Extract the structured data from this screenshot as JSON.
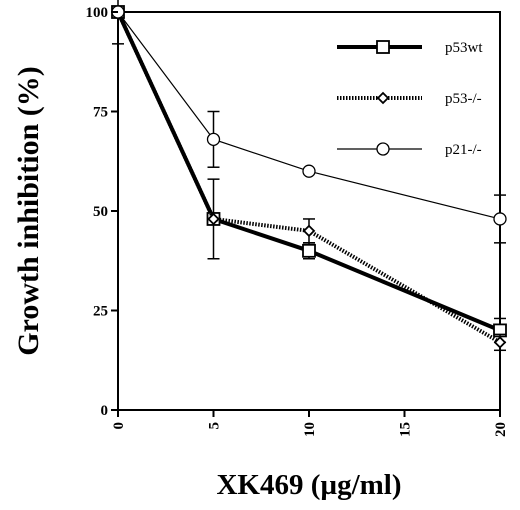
{
  "chart_data": {
    "type": "line",
    "xlabel": "XK469 (µg/ml)",
    "ylabel": "Growth inhibition (%)",
    "xlim": [
      0,
      20
    ],
    "ylim": [
      0,
      100
    ],
    "x_ticks": [
      "0",
      "5",
      "10",
      "15",
      "20"
    ],
    "y_ticks": [
      "0",
      "25",
      "50",
      "75",
      "100"
    ],
    "grid": false,
    "legend_position": "top-right",
    "series": [
      {
        "name": "p53wt",
        "marker": "square",
        "line": "thick-solid",
        "x": [
          0,
          5,
          10,
          20
        ],
        "y": [
          100,
          48,
          40,
          20
        ],
        "error": [
          0,
          10,
          2,
          3
        ]
      },
      {
        "name": "p53-/-",
        "marker": "diamond",
        "line": "thick-dotted",
        "x": [
          0,
          5,
          10,
          20
        ],
        "y": [
          100,
          48,
          45,
          17
        ],
        "error": [
          0,
          0,
          3,
          2
        ]
      },
      {
        "name": "p21-/-",
        "marker": "circle",
        "line": "thin-solid",
        "x": [
          0,
          5,
          10,
          20
        ],
        "y": [
          100,
          68,
          60,
          48
        ],
        "error": [
          8,
          7,
          0,
          6
        ]
      }
    ]
  }
}
